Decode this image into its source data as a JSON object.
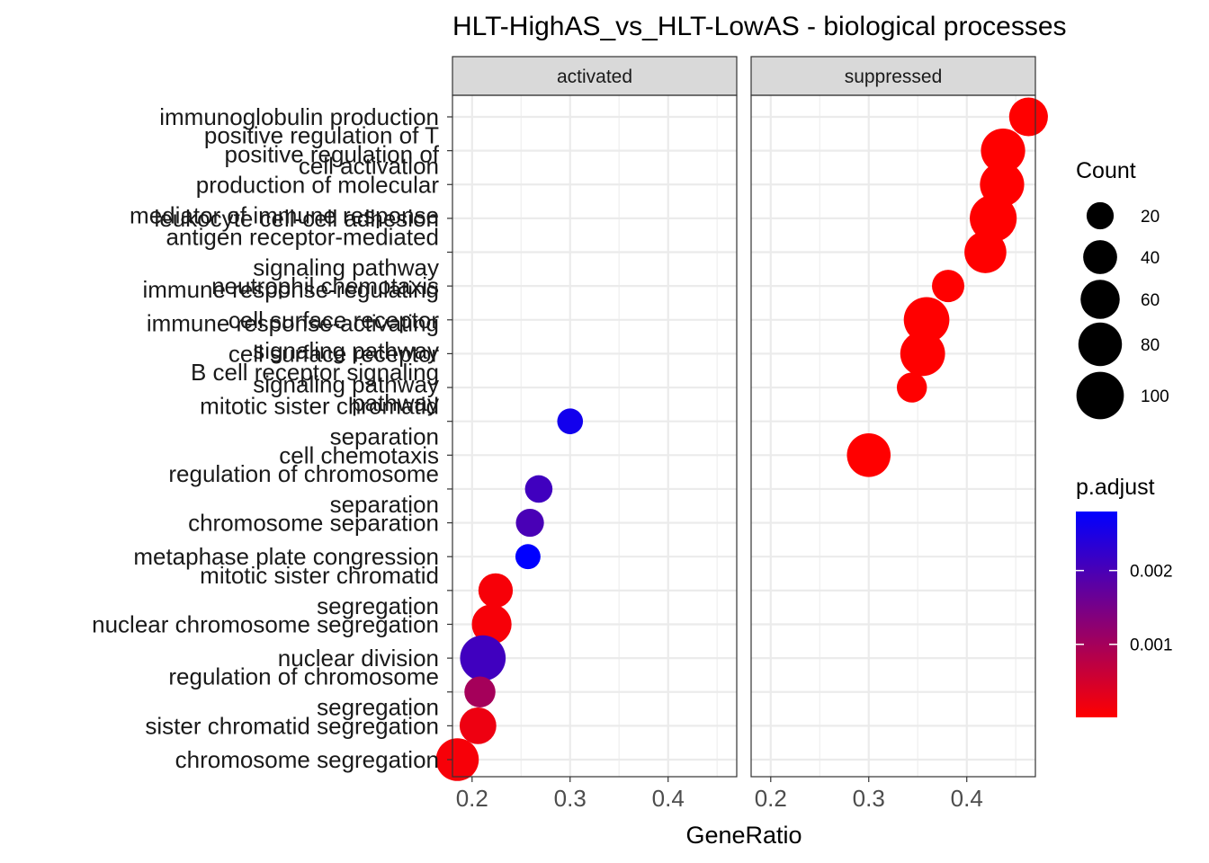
{
  "chart_data": {
    "type": "scatter",
    "title": "HLT-HighAS_vs_HLT-LowAS - biological processes",
    "xlabel": "GeneRatio",
    "ylabel": "",
    "xlim": [
      0.18,
      0.47
    ],
    "xticks": [
      0.2,
      0.3,
      0.4
    ],
    "xtick_labels": [
      "0.2",
      "0.3",
      "0.4"
    ],
    "grid": true,
    "legend_placement": "right",
    "panels": [
      "activated",
      "suppressed"
    ],
    "categories": [
      "immunoglobulin production",
      "positive regulation of T cell activation",
      "positive regulation of production of molecular mediator of immune response",
      "leukocyte cell-cell adhesion",
      "antigen receptor-mediated signaling pathway",
      "neutrophil chemotaxis",
      "immune response-regulating cell surface receptor signaling pathway",
      "immune response-activating cell surface receptor signaling pathway",
      "B cell receptor signaling pathway",
      "mitotic sister chromatid separation",
      "cell chemotaxis",
      "regulation of chromosome separation",
      "chromosome separation",
      "metaphase plate congression",
      "mitotic sister chromatid segregation",
      "nuclear chromosome segregation",
      "nuclear division",
      "regulation of chromosome segregation",
      "sister chromatid segregation",
      "chromosome segregation"
    ],
    "category_label_lines": [
      [
        "immunoglobulin production"
      ],
      [
        "positive regulation of T",
        "cell activation"
      ],
      [
        "positive regulation of",
        "production of molecular",
        "mediator of immune response"
      ],
      [
        "leukocyte cell-cell adhesion"
      ],
      [
        "antigen receptor-mediated",
        "signaling pathway"
      ],
      [
        "neutrophil chemotaxis"
      ],
      [
        "immune response-regulating",
        "cell surface receptor",
        "signaling pathway"
      ],
      [
        "immune response-activating",
        "cell surface receptor",
        "signaling pathway"
      ],
      [
        "B cell receptor signaling",
        "pathway"
      ],
      [
        "mitotic sister chromatid",
        "separation"
      ],
      [
        "cell chemotaxis"
      ],
      [
        "regulation of chromosome",
        "separation"
      ],
      [
        "chromosome separation"
      ],
      [
        "metaphase plate congression"
      ],
      [
        "mitotic sister chromatid",
        "segregation"
      ],
      [
        "nuclear chromosome segregation"
      ],
      [
        "nuclear division"
      ],
      [
        "regulation of chromosome",
        "segregation"
      ],
      [
        "sister chromatid segregation"
      ],
      [
        "chromosome segregation"
      ]
    ],
    "series": [
      {
        "panel": "activated",
        "points": [
          {
            "category": "mitotic sister chromatid separation",
            "x": 0.3,
            "count": 12,
            "p_adjust": 0.0026
          },
          {
            "category": "regulation of chromosome separation",
            "x": 0.268,
            "count": 15,
            "p_adjust": 0.0021
          },
          {
            "category": "chromosome separation",
            "x": 0.259,
            "count": 16,
            "p_adjust": 0.002
          },
          {
            "category": "metaphase plate congression",
            "x": 0.257,
            "count": 11,
            "p_adjust": 0.0028
          },
          {
            "category": "mitotic sister chromatid segregation",
            "x": 0.224,
            "count": 30,
            "p_adjust": 0.0001
          },
          {
            "category": "nuclear chromosome segregation",
            "x": 0.22,
            "count": 45,
            "p_adjust": 0.0001
          },
          {
            "category": "nuclear division",
            "x": 0.211,
            "count": 65,
            "p_adjust": 0.0021
          },
          {
            "category": "regulation of chromosome segregation",
            "x": 0.208,
            "count": 22,
            "p_adjust": 0.001
          },
          {
            "category": "sister chromatid segregation",
            "x": 0.206,
            "count": 36,
            "p_adjust": 0.0002
          },
          {
            "category": "chromosome segregation",
            "x": 0.185,
            "count": 55,
            "p_adjust": 0.0001
          }
        ]
      },
      {
        "panel": "suppressed",
        "points": [
          {
            "category": "immunoglobulin production",
            "x": 0.463,
            "count": 42,
            "p_adjust": 1e-05
          },
          {
            "category": "positive regulation of T cell activation",
            "x": 0.437,
            "count": 60,
            "p_adjust": 1e-05
          },
          {
            "category": "positive regulation of production of molecular mediator of immune response",
            "x": 0.436,
            "count": 60,
            "p_adjust": 1e-05
          },
          {
            "category": "leukocyte cell-cell adhesion",
            "x": 0.427,
            "count": 70,
            "p_adjust": 1e-05
          },
          {
            "category": "antigen receptor-mediated signaling pathway",
            "x": 0.419,
            "count": 52,
            "p_adjust": 1e-05
          },
          {
            "category": "neutrophil chemotaxis",
            "x": 0.381,
            "count": 25,
            "p_adjust": 1e-05
          },
          {
            "category": "immune response-regulating cell surface receptor signaling pathway",
            "x": 0.359,
            "count": 65,
            "p_adjust": 1e-05
          },
          {
            "category": "immune response-activating cell surface receptor signaling pathway",
            "x": 0.355,
            "count": 62,
            "p_adjust": 1e-05
          },
          {
            "category": "B cell receptor signaling pathway",
            "x": 0.344,
            "count": 20,
            "p_adjust": 1e-05
          },
          {
            "category": "cell chemotaxis",
            "x": 0.3,
            "count": 58,
            "p_adjust": 1e-05
          }
        ]
      }
    ],
    "size_legend": {
      "title": "Count",
      "values": [
        20,
        40,
        60,
        80,
        100
      ]
    },
    "color_legend": {
      "title": "p.adjust",
      "ticks": [
        0.002,
        0.001
      ],
      "tick_labels": [
        "0.002",
        "0.001"
      ],
      "range": [
        1e-05,
        0.0028
      ],
      "low_color": "#ff0000",
      "high_color": "#0000ff"
    }
  }
}
